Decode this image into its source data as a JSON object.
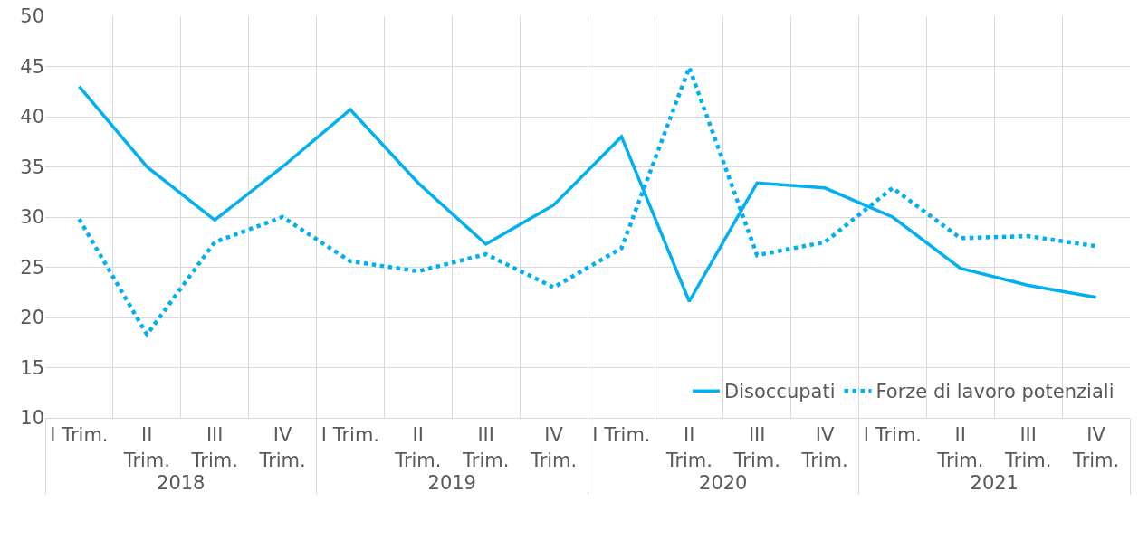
{
  "chart_data": {
    "type": "line",
    "categories": [
      "I Trim.",
      "II Trim.",
      "III Trim.",
      "IV Trim.",
      "I Trim.",
      "II Trim.",
      "III Trim.",
      "IV Trim.",
      "I Trim.",
      "II Trim.",
      "III Trim.",
      "IV Trim.",
      "I Trim.",
      "II Trim.",
      "III Trim.",
      "IV Trim."
    ],
    "annotations": [
      "2018",
      "2019",
      "2020",
      "2021"
    ],
    "series": [
      {
        "name": "Disoccupati",
        "color": "#00b0f0",
        "line_style": "solid",
        "values": [
          43,
          35,
          29.7,
          35,
          40.7,
          33.4,
          27.3,
          31.2,
          38,
          21.6,
          33.4,
          32.9,
          30,
          24.9,
          23.2,
          22
        ]
      },
      {
        "name": "Forze di lavoro potenziali",
        "color": "#00b0f0",
        "line_style": "dotted",
        "values": [
          29.8,
          18.3,
          27.5,
          30,
          25.6,
          24.6,
          26.3,
          23,
          26.9,
          44.9,
          26.2,
          27.5,
          32.9,
          27.9,
          28.1,
          27.1
        ]
      }
    ],
    "ylim": [
      10,
      50
    ],
    "yticks": [
      10,
      15,
      20,
      25,
      30,
      35,
      40,
      45,
      50
    ],
    "grid": true,
    "legend": "bottom right",
    "marker": "none"
  }
}
